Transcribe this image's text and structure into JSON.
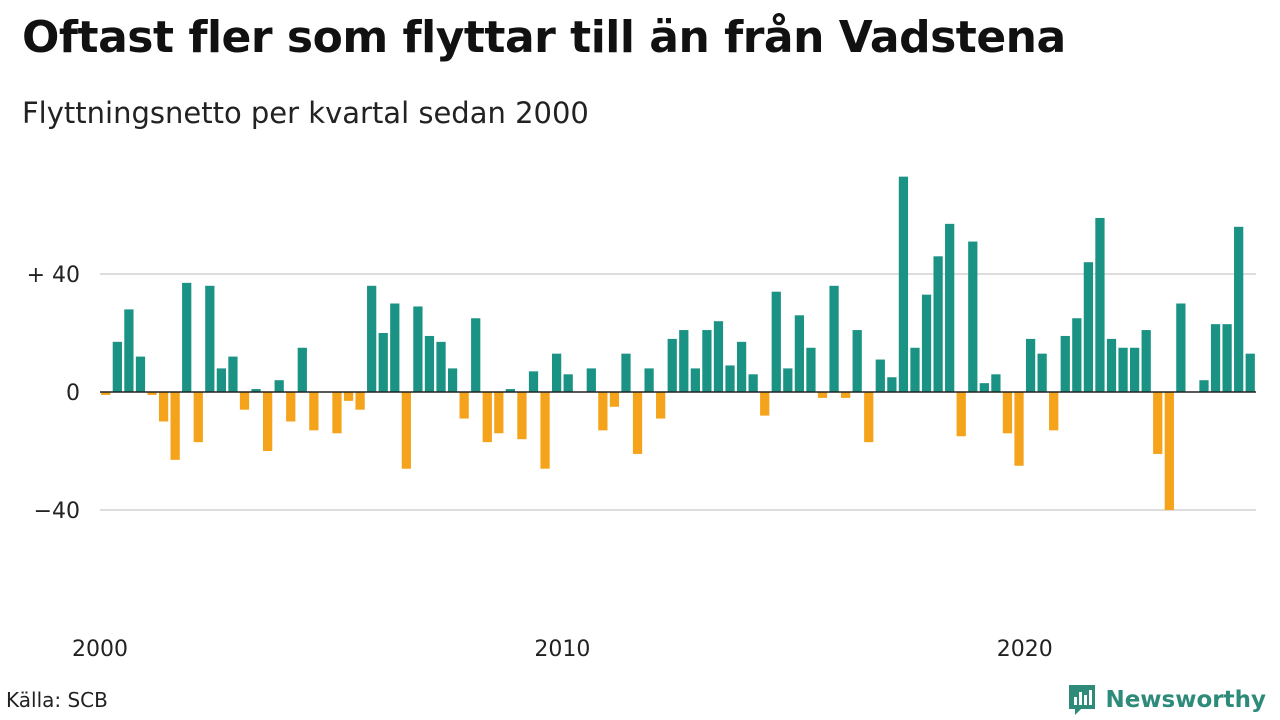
{
  "title": "Oftast fler som flyttar till än från Vadstena",
  "subtitle": "Flyttningsnetto per kvartal sedan 2000",
  "source": "Källa: SCB",
  "brand": "Newsworthy",
  "colors": {
    "positive": "#1a9384",
    "negative": "#f4a31b",
    "grid": "#dddddd",
    "brand": "#2e8b7a"
  },
  "chart_data": {
    "type": "bar",
    "x_unit": "quarter",
    "start": "2000 Q1",
    "x_ticks": [
      "2000",
      "2010",
      "2020"
    ],
    "y_ticks": [
      {
        "value": 40,
        "label": "+ 40"
      },
      {
        "value": 0,
        "label": "0"
      },
      {
        "value": -40,
        "label": "−40"
      }
    ],
    "ylim": [
      -72,
      74
    ],
    "values": [
      -1,
      17,
      28,
      12,
      -1,
      -10,
      -23,
      37,
      -17,
      36,
      8,
      12,
      -6,
      1,
      -20,
      4,
      -10,
      15,
      -13,
      0,
      -14,
      -3,
      -6,
      36,
      20,
      30,
      -26,
      29,
      19,
      17,
      8,
      -9,
      25,
      -17,
      -14,
      1,
      -16,
      7,
      -26,
      13,
      6,
      0,
      8,
      -13,
      -5,
      13,
      -21,
      8,
      -9,
      18,
      21,
      8,
      21,
      24,
      9,
      17,
      6,
      -8,
      34,
      8,
      26,
      15,
      -2,
      36,
      -2,
      21,
      -17,
      11,
      5,
      73,
      15,
      33,
      46,
      57,
      -15,
      51,
      3,
      6,
      -14,
      -25,
      18,
      13,
      -13,
      19,
      25,
      44,
      59,
      18,
      15,
      15,
      21,
      -21,
      -40,
      30,
      0,
      4,
      23,
      23,
      56,
      13
    ]
  }
}
